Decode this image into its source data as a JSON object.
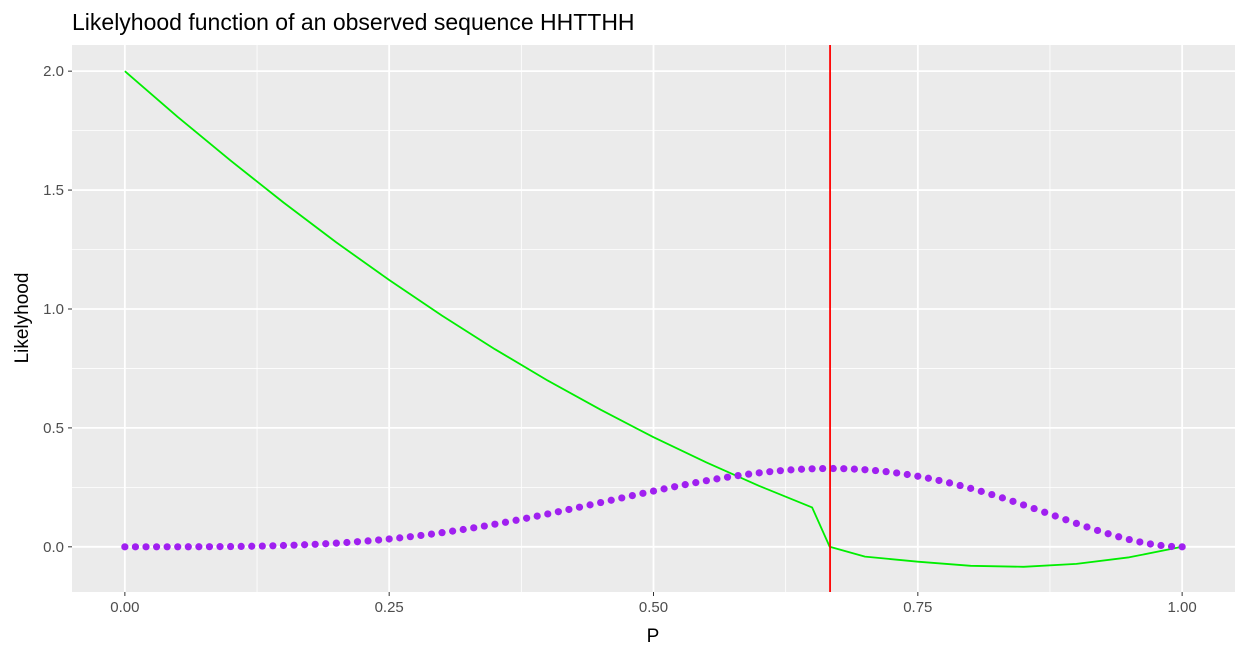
{
  "chart_data": {
    "type": "line",
    "title": "Likelyhood function of an observed sequence HHTTHH",
    "xlabel": "P",
    "ylabel": "Likelyhood",
    "xlim": [
      -0.05,
      1.05
    ],
    "ylim": [
      -0.19,
      2.11
    ],
    "x_ticks": [
      0,
      0.25,
      0.5,
      0.75,
      1.0
    ],
    "x_tick_labels": [
      "0.00",
      "0.25",
      "0.50",
      "0.75",
      "1.00"
    ],
    "y_ticks": [
      0,
      0.5,
      1.0,
      1.5,
      2.0
    ],
    "y_tick_labels": [
      "0.0",
      "0.5",
      "1.0",
      "1.5",
      "2.0"
    ],
    "grid": true,
    "background": "#ebebeb",
    "series": [
      {
        "style": "line",
        "color": "#00ee00",
        "x": [
          0,
          0.05,
          0.1,
          0.15,
          0.2,
          0.25,
          0.3,
          0.35,
          0.4,
          0.45,
          0.5,
          0.55,
          0.6,
          0.65,
          0.6667,
          0.7,
          0.75,
          0.8,
          0.85,
          0.9,
          0.95,
          1.0
        ],
        "values": [
          2.0,
          1.8077,
          1.624,
          1.4478,
          1.28,
          1.1218,
          0.972,
          0.8309,
          0.699,
          0.5764,
          0.4609,
          0.3548,
          0.256,
          0.1656,
          0.0,
          -0.041,
          -0.0625,
          -0.08,
          -0.084,
          -0.072,
          -0.044,
          0.0
        ]
      },
      {
        "style": "points",
        "color": "#a020f0",
        "x": [
          0,
          0.05,
          0.1,
          0.15,
          0.2,
          0.25,
          0.3,
          0.35,
          0.4,
          0.45,
          0.5,
          0.55,
          0.6,
          0.65,
          0.7,
          0.75,
          0.8,
          0.85,
          0.9,
          0.95,
          1.0
        ],
        "values": [
          0,
          0.0,
          0.0066,
          0.0161,
          0.0313,
          0.0352,
          0.0556,
          0.0844,
          0.1211,
          0.1642,
          0.24,
          0.272,
          0.311,
          0.33,
          0.33,
          0.296,
          0.246,
          0.185,
          0.118,
          0.056,
          0.0
        ]
      }
    ],
    "vlines": [
      {
        "x": 0.667,
        "color": "#ff0000"
      }
    ]
  }
}
